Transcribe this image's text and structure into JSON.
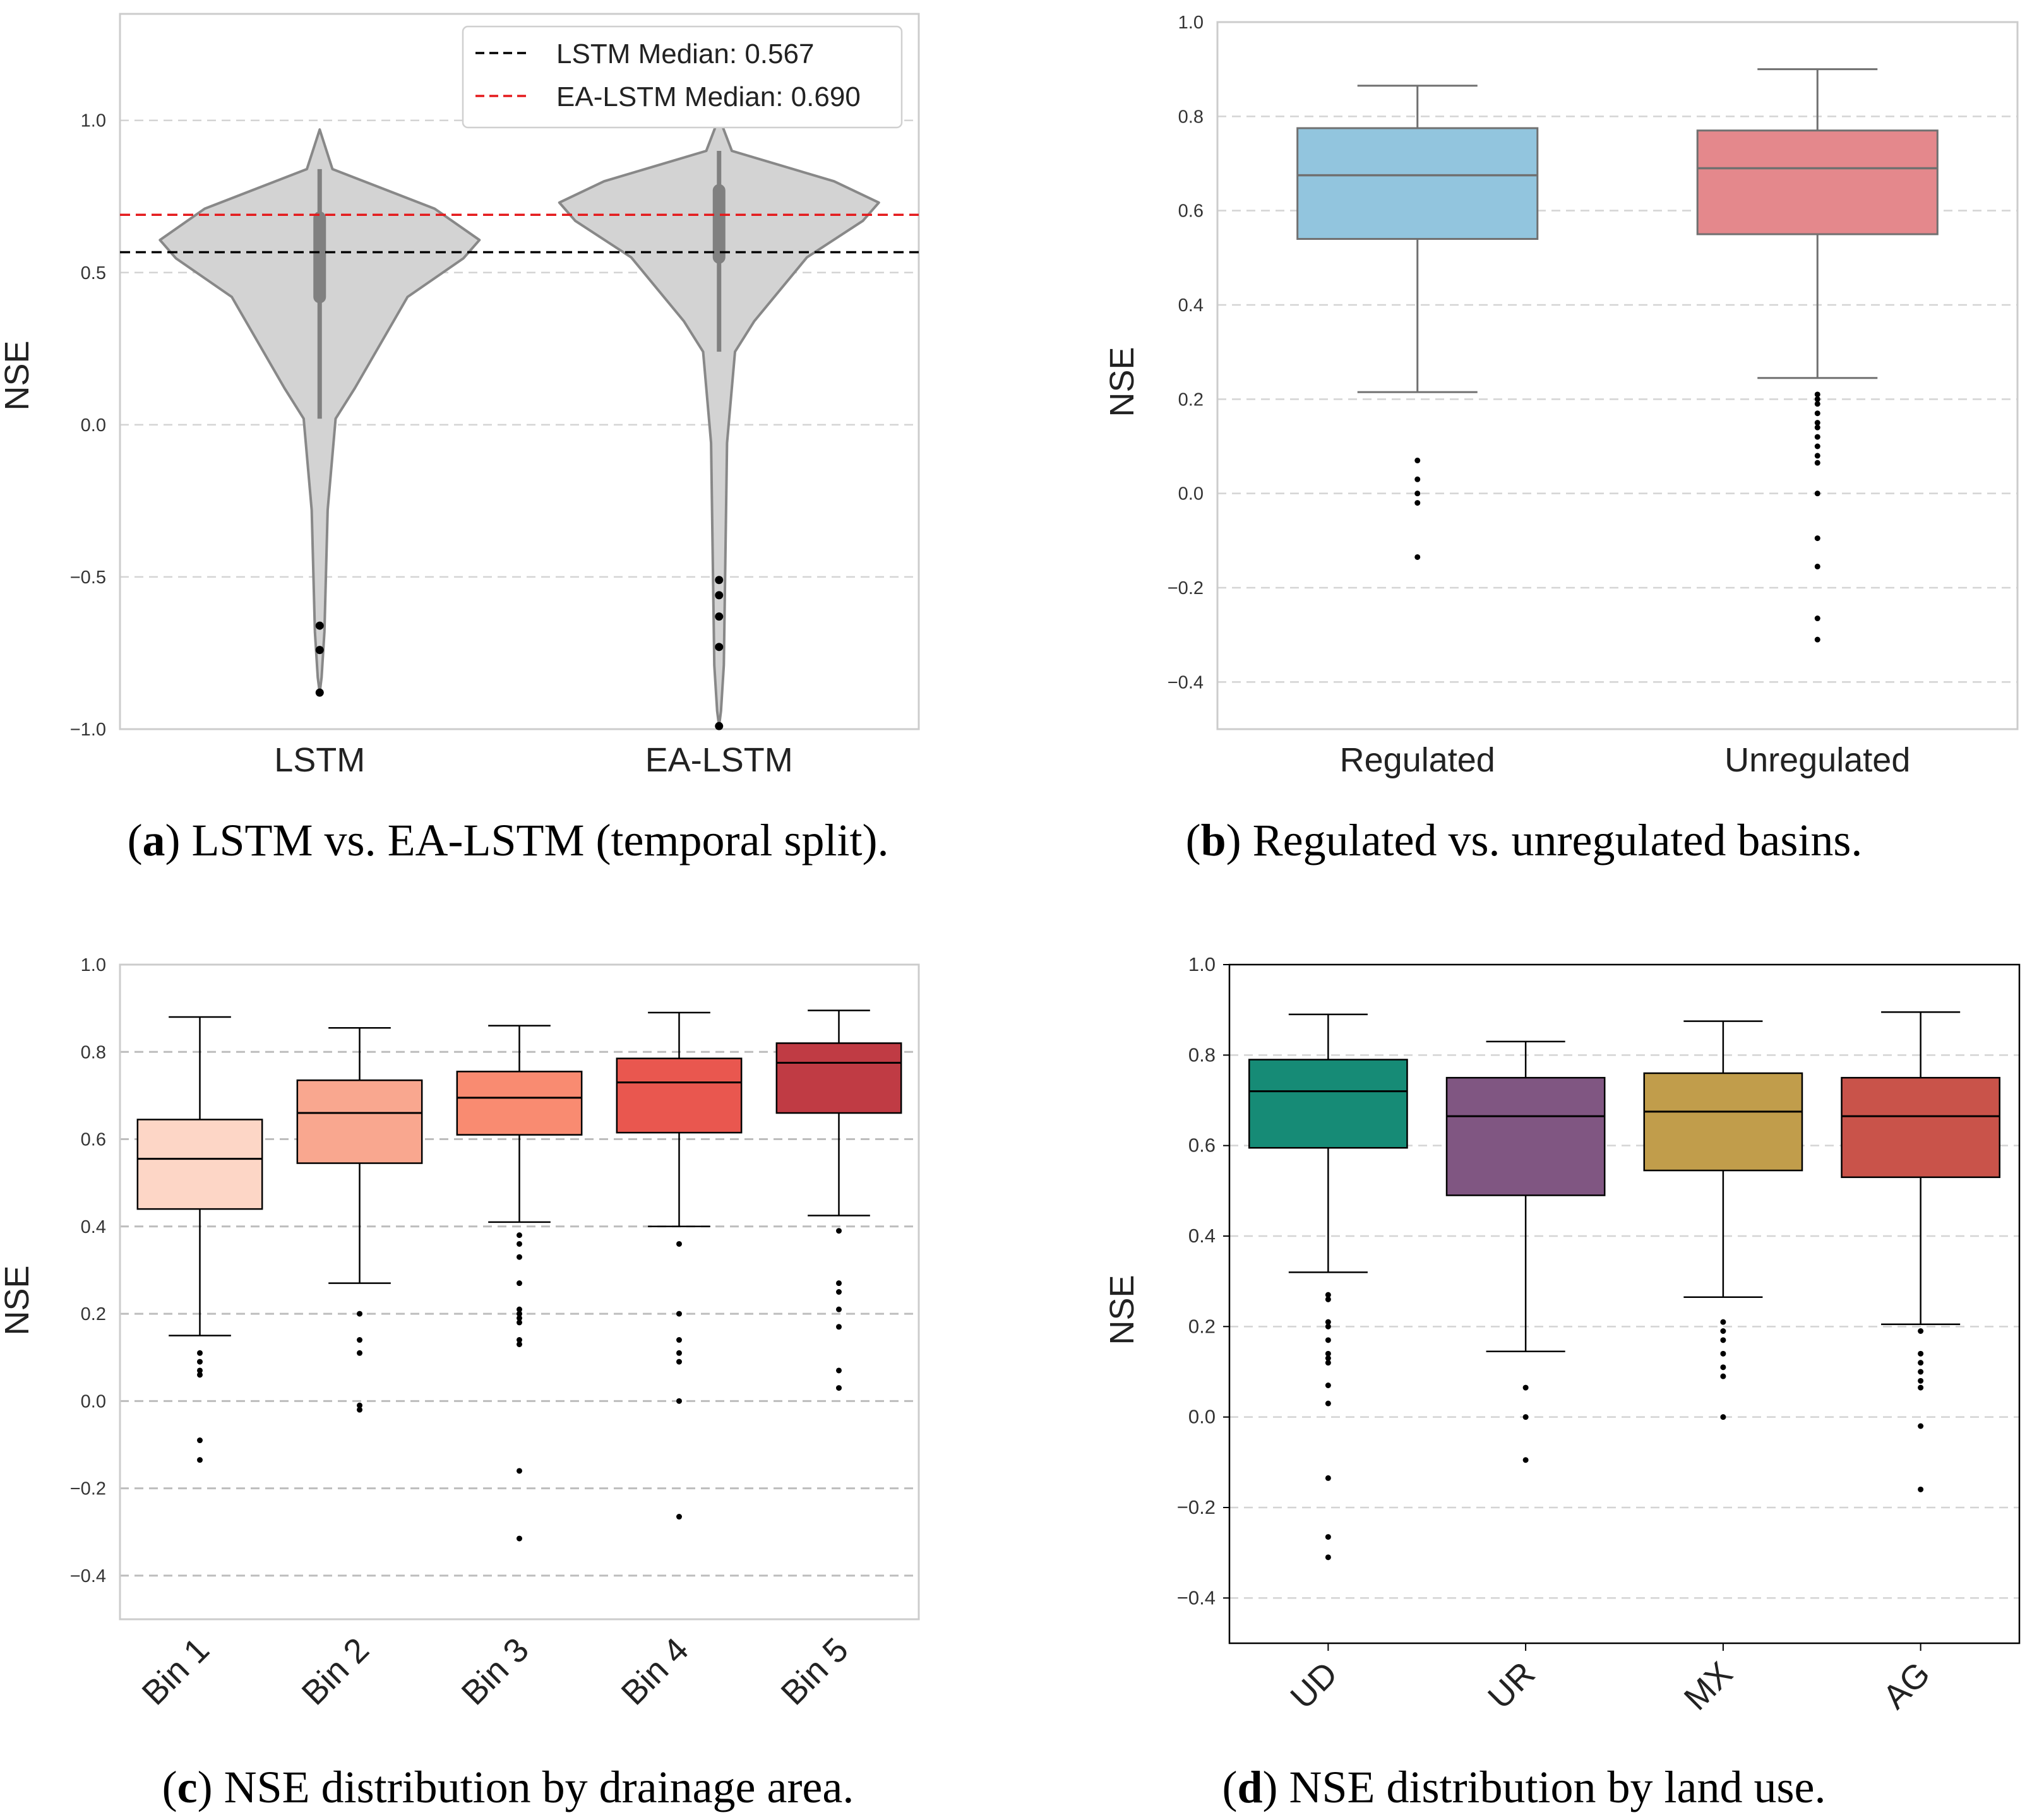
{
  "chart_data": [
    {
      "id": "a",
      "type": "violin",
      "ylabel": "NSE",
      "ylim": [
        -1.0,
        1.35
      ],
      "yticks": [
        "-1.0",
        "-0.5",
        "0.0",
        "0.5",
        "1.0"
      ],
      "categories": [
        "LSTM",
        "EA-LSTM"
      ],
      "grid": "horizontal dashed",
      "legend_position": "top-right",
      "series": [
        {
          "name": "LSTM",
          "q1": 0.42,
          "median": 0.567,
          "q3": 0.68,
          "whisker_low": 0.02,
          "whisker_high": 0.84,
          "max": 0.97,
          "outliers": [
            -0.66,
            -0.74,
            -0.88
          ]
        },
        {
          "name": "EA-LSTM",
          "q1": 0.55,
          "median": 0.69,
          "q3": 0.77,
          "whisker_low": 0.24,
          "whisker_high": 0.9,
          "max": 1.01,
          "outliers": [
            -0.51,
            -0.56,
            -0.63,
            -0.73,
            -0.99
          ]
        }
      ],
      "reference_lines": [
        {
          "label": "LSTM Median: 0.567",
          "value": 0.567,
          "color": "#000000"
        },
        {
          "label": "EA-LSTM Median: 0.690",
          "value": 0.69,
          "color": "#e41a1c"
        }
      ],
      "caption_tag": "a",
      "caption_text": " LSTM vs. EA-LSTM (temporal split)."
    },
    {
      "id": "b",
      "type": "box",
      "ylabel": "NSE",
      "ylim": [
        -0.5,
        1.0
      ],
      "yticks": [
        "-0.4",
        "-0.2",
        "0.0",
        "0.2",
        "0.4",
        "0.6",
        "0.8",
        "1.0"
      ],
      "categories": [
        "Regulated",
        "Unregulated"
      ],
      "grid": "horizontal dashed",
      "series": [
        {
          "name": "Regulated",
          "color": "#92c5de",
          "q1": 0.54,
          "median": 0.675,
          "q3": 0.775,
          "whisker_low": 0.215,
          "whisker_high": 0.865,
          "outliers": [
            0.07,
            0.03,
            0.0,
            -0.02,
            -0.135
          ]
        },
        {
          "name": "Unregulated",
          "color": "#e4888c",
          "q1": 0.55,
          "median": 0.69,
          "q3": 0.77,
          "whisker_low": 0.245,
          "whisker_high": 0.9,
          "outliers": [
            0.21,
            0.2,
            0.19,
            0.17,
            0.15,
            0.14,
            0.12,
            0.1,
            0.08,
            0.065,
            0.0,
            -0.095,
            -0.155,
            -0.265,
            -0.31
          ]
        }
      ],
      "caption_tag": "b",
      "caption_text": " Regulated vs. unregulated basins."
    },
    {
      "id": "c",
      "type": "box",
      "ylabel": "NSE",
      "ylim": [
        -0.5,
        1.0
      ],
      "yticks": [
        "-0.4",
        "-0.2",
        "0.0",
        "0.2",
        "0.4",
        "0.6",
        "0.8",
        "1.0"
      ],
      "categories": [
        "Bin 1",
        "Bin 2",
        "Bin 3",
        "Bin 4",
        "Bin 5"
      ],
      "grid": "horizontal dashed",
      "series": [
        {
          "name": "Bin 1",
          "color": "#fdd6c6",
          "q1": 0.44,
          "median": 0.555,
          "q3": 0.645,
          "whisker_low": 0.15,
          "whisker_high": 0.88,
          "outliers": [
            0.11,
            0.09,
            0.07,
            0.06,
            -0.09,
            -0.135
          ]
        },
        {
          "name": "Bin 2",
          "color": "#f9a78f",
          "q1": 0.545,
          "median": 0.66,
          "q3": 0.735,
          "whisker_low": 0.27,
          "whisker_high": 0.855,
          "outliers": [
            0.2,
            0.14,
            0.11,
            -0.01,
            -0.02
          ]
        },
        {
          "name": "Bin 3",
          "color": "#f98b71",
          "q1": 0.61,
          "median": 0.695,
          "q3": 0.755,
          "whisker_low": 0.41,
          "whisker_high": 0.86,
          "outliers": [
            0.38,
            0.36,
            0.33,
            0.27,
            0.21,
            0.2,
            0.19,
            0.18,
            0.14,
            0.13,
            -0.16,
            -0.315
          ]
        },
        {
          "name": "Bin 4",
          "color": "#e9574f",
          "q1": 0.615,
          "median": 0.73,
          "q3": 0.785,
          "whisker_low": 0.4,
          "whisker_high": 0.89,
          "outliers": [
            0.36,
            0.2,
            0.14,
            0.11,
            0.09,
            0.0,
            -0.265
          ]
        },
        {
          "name": "Bin 5",
          "color": "#c03b44",
          "q1": 0.66,
          "median": 0.775,
          "q3": 0.82,
          "whisker_low": 0.425,
          "whisker_high": 0.895,
          "outliers": [
            0.39,
            0.27,
            0.25,
            0.21,
            0.17,
            0.07,
            0.03
          ]
        }
      ],
      "caption_tag": "c",
      "caption_text": " NSE distribution by drainage area."
    },
    {
      "id": "d",
      "type": "box",
      "ylabel": "NSE",
      "ylim": [
        -0.5,
        1.0
      ],
      "yticks": [
        "-0.4",
        "-0.2",
        "0.0",
        "0.2",
        "0.4",
        "0.6",
        "0.8",
        "1.0"
      ],
      "categories": [
        "UD",
        "UR",
        "MX",
        "AG"
      ],
      "grid": "horizontal dashed",
      "series": [
        {
          "name": "UD",
          "color": "#168b76",
          "q1": 0.595,
          "median": 0.72,
          "q3": 0.79,
          "whisker_low": 0.32,
          "whisker_high": 0.89,
          "outliers": [
            0.27,
            0.26,
            0.21,
            0.2,
            0.17,
            0.14,
            0.13,
            0.12,
            0.07,
            0.03,
            -0.135,
            -0.265,
            -0.31
          ]
        },
        {
          "name": "UR",
          "color": "#805682",
          "q1": 0.49,
          "median": 0.665,
          "q3": 0.75,
          "whisker_low": 0.145,
          "whisker_high": 0.83,
          "outliers": [
            0.065,
            0.0,
            -0.095
          ]
        },
        {
          "name": "MX",
          "color": "#c19d4b",
          "q1": 0.545,
          "median": 0.675,
          "q3": 0.76,
          "whisker_low": 0.265,
          "whisker_high": 0.875,
          "outliers": [
            0.21,
            0.19,
            0.17,
            0.14,
            0.11,
            0.09,
            0.0
          ]
        },
        {
          "name": "AG",
          "color": "#c9534a",
          "q1": 0.53,
          "median": 0.665,
          "q3": 0.75,
          "whisker_low": 0.205,
          "whisker_high": 0.895,
          "outliers": [
            0.19,
            0.14,
            0.12,
            0.1,
            0.08,
            0.065,
            -0.02,
            -0.16
          ]
        }
      ],
      "caption_tag": "d",
      "caption_text": " NSE distribution by land use."
    }
  ]
}
